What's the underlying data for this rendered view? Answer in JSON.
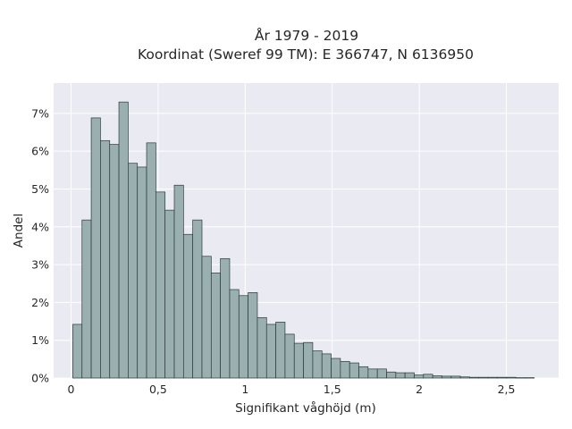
{
  "chart_data": {
    "type": "bar",
    "title_lines": [
      "År 1979 - 2019",
      "Koordinat (Sweref 99 TM): E 366747, N 6136950"
    ],
    "xlabel": "Signifikant våghöjd (m)",
    "ylabel": "Andel",
    "xlim": [
      -0.1,
      2.8
    ],
    "ylim": [
      0,
      7.8
    ],
    "x_ticks": [
      {
        "value": 0,
        "label": "0"
      },
      {
        "value": 0.5,
        "label": "0,5"
      },
      {
        "value": 1,
        "label": "1"
      },
      {
        "value": 1.5,
        "label": "1,5"
      },
      {
        "value": 2,
        "label": "2"
      },
      {
        "value": 2.5,
        "label": "2,5"
      }
    ],
    "y_ticks": [
      {
        "value": 0,
        "label": "0%"
      },
      {
        "value": 1,
        "label": "1%"
      },
      {
        "value": 2,
        "label": "2%"
      },
      {
        "value": 3,
        "label": "3%"
      },
      {
        "value": 4,
        "label": "4%"
      },
      {
        "value": 5,
        "label": "5%"
      },
      {
        "value": 6,
        "label": "6%"
      },
      {
        "value": 7,
        "label": "7%"
      }
    ],
    "bin_start": 0.01,
    "bin_width": 0.053,
    "values": [
      1.42,
      4.18,
      6.88,
      6.28,
      6.18,
      7.3,
      5.68,
      5.58,
      6.22,
      4.92,
      4.44,
      5.1,
      3.8,
      4.18,
      3.22,
      2.78,
      3.16,
      2.34,
      2.18,
      2.26,
      1.6,
      1.42,
      1.48,
      1.16,
      0.92,
      0.94,
      0.72,
      0.64,
      0.52,
      0.44,
      0.4,
      0.3,
      0.24,
      0.24,
      0.16,
      0.14,
      0.14,
      0.08,
      0.1,
      0.06,
      0.05,
      0.05,
      0.03,
      0.02,
      0.02,
      0.02,
      0.02,
      0.02,
      0.01,
      0.01
    ],
    "grid": true,
    "colors": {
      "bar": "#9aafb0",
      "bar_edge": "#2b3a3a",
      "plot_bg": "#eaeaf2",
      "grid": "#ffffff"
    }
  }
}
